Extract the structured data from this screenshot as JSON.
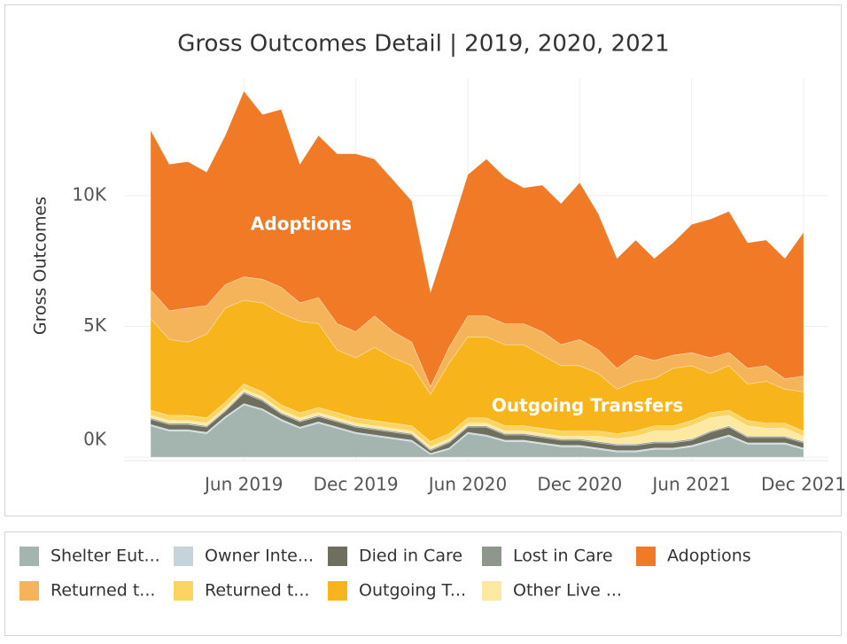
{
  "chart_data": {
    "type": "stacked-area",
    "title": "Gross Outcomes Detail | 2019, 2020, 2021",
    "y_label": "Gross Outcomes",
    "annotations": [
      "Adoptions",
      "Outgoing Transfers"
    ],
    "x": [
      "2019-01",
      "2019-02",
      "2019-03",
      "2019-04",
      "2019-05",
      "2019-06",
      "2019-07",
      "2019-08",
      "2019-09",
      "2019-10",
      "2019-11",
      "2019-12",
      "2020-01",
      "2020-02",
      "2020-03",
      "2020-04",
      "2020-05",
      "2020-06",
      "2020-07",
      "2020-08",
      "2020-09",
      "2020-10",
      "2020-11",
      "2020-12",
      "2021-01",
      "2021-02",
      "2021-03",
      "2021-04",
      "2021-05",
      "2021-06",
      "2021-07",
      "2021-08",
      "2021-09",
      "2021-10",
      "2021-11",
      "2021-12"
    ],
    "xticks": [
      {
        "value": "2019-06",
        "label": "Jun 2019"
      },
      {
        "value": "2019-12",
        "label": "Dec 2019"
      },
      {
        "value": "2020-06",
        "label": "Jun 2020"
      },
      {
        "value": "2020-12",
        "label": "Dec 2020"
      },
      {
        "value": "2021-06",
        "label": "Jun 2021"
      },
      {
        "value": "2021-12",
        "label": "Dec 2021"
      }
    ],
    "ylim": [
      -200,
      14500
    ],
    "yticks": [
      {
        "value": 0,
        "label": "0K"
      },
      {
        "value": 5000,
        "label": "5K"
      },
      {
        "value": 10000,
        "label": "10K"
      }
    ],
    "grid": true,
    "legend_order": [
      0,
      2,
      4,
      6,
      8,
      1,
      3,
      5,
      7
    ],
    "series": [
      {
        "name": "Shelter Eut...",
        "color": "#a4b5b0",
        "values": [
          1200,
          1000,
          1000,
          900,
          1500,
          2000,
          1800,
          1400,
          1100,
          1300,
          1100,
          900,
          800,
          700,
          600,
          100,
          300,
          900,
          800,
          600,
          600,
          500,
          400,
          400,
          300,
          200,
          200,
          300,
          300,
          400,
          600,
          800,
          500,
          500,
          500,
          300
        ]
      },
      {
        "name": "Returned t...",
        "color": "#f5b35a",
        "values": [
          1100,
          1100,
          1300,
          1100,
          900,
          900,
          900,
          1000,
          700,
          1000,
          1000,
          1000,
          1200,
          1000,
          900,
          300,
          600,
          800,
          800,
          800,
          800,
          900,
          800,
          1000,
          900,
          800,
          1000,
          700,
          500,
          500,
          600,
          500,
          600,
          600,
          400,
          600
        ]
      },
      {
        "name": "Owner Inte...",
        "color": "#c5d4da",
        "values": [
          50,
          50,
          50,
          50,
          50,
          50,
          50,
          50,
          50,
          50,
          50,
          50,
          50,
          50,
          50,
          50,
          50,
          50,
          50,
          50,
          50,
          50,
          50,
          50,
          50,
          50,
          50,
          50,
          50,
          50,
          50,
          50,
          50,
          50,
          50,
          50
        ]
      },
      {
        "name": "Returned t...",
        "color": "#fcd462",
        "values": [
          200,
          200,
          200,
          200,
          200,
          200,
          200,
          200,
          200,
          200,
          200,
          200,
          200,
          200,
          200,
          200,
          200,
          200,
          200,
          200,
          200,
          200,
          200,
          200,
          200,
          200,
          200,
          200,
          200,
          200,
          200,
          200,
          200,
          200,
          200,
          200
        ]
      },
      {
        "name": "Died in Care",
        "color": "#6f6f5f",
        "values": [
          200,
          200,
          200,
          200,
          200,
          400,
          300,
          200,
          200,
          200,
          200,
          200,
          200,
          200,
          200,
          100,
          200,
          200,
          300,
          200,
          200,
          200,
          200,
          200,
          200,
          200,
          200,
          200,
          200,
          200,
          300,
          300,
          200,
          200,
          200,
          200
        ]
      },
      {
        "name": "Outgoing T...",
        "color": "#f8b41b",
        "values": [
          3500,
          2900,
          2800,
          3200,
          3600,
          3200,
          3400,
          3500,
          3500,
          3200,
          2400,
          2300,
          2800,
          2500,
          2300,
          1800,
          2700,
          3100,
          3100,
          3100,
          3100,
          2800,
          2500,
          2500,
          2200,
          1700,
          1900,
          1800,
          2200,
          2100,
          1500,
          1700,
          1400,
          1600,
          1300,
          1500
        ]
      },
      {
        "name": "Lost in Care",
        "color": "#8d978b",
        "values": [
          50,
          50,
          50,
          50,
          50,
          50,
          50,
          50,
          50,
          50,
          50,
          50,
          50,
          50,
          50,
          50,
          50,
          50,
          50,
          50,
          50,
          50,
          50,
          50,
          50,
          50,
          50,
          50,
          50,
          50,
          50,
          50,
          50,
          50,
          50,
          50
        ]
      },
      {
        "name": "Other Live ...",
        "color": "#fde9a2",
        "values": [
          100,
          100,
          100,
          100,
          100,
          100,
          100,
          100,
          100,
          100,
          100,
          100,
          100,
          100,
          100,
          100,
          100,
          100,
          100,
          100,
          100,
          100,
          100,
          100,
          200,
          200,
          300,
          400,
          400,
          500,
          500,
          400,
          400,
          300,
          300,
          200
        ]
      },
      {
        "name": "Adoptions",
        "color": "#f07a26",
        "values": [
          6100,
          5600,
          5600,
          5100,
          5700,
          7100,
          6300,
          6800,
          5300,
          6200,
          6500,
          6800,
          6000,
          5800,
          5400,
          3600,
          4300,
          5400,
          6000,
          5600,
          5200,
          5600,
          5400,
          6000,
          5200,
          4200,
          4400,
          3900,
          4300,
          4900,
          5300,
          5400,
          4800,
          4800,
          4600,
          5500
        ]
      }
    ],
    "stack_order": [
      0,
      2,
      4,
      6,
      7,
      3,
      5,
      1,
      8
    ]
  }
}
